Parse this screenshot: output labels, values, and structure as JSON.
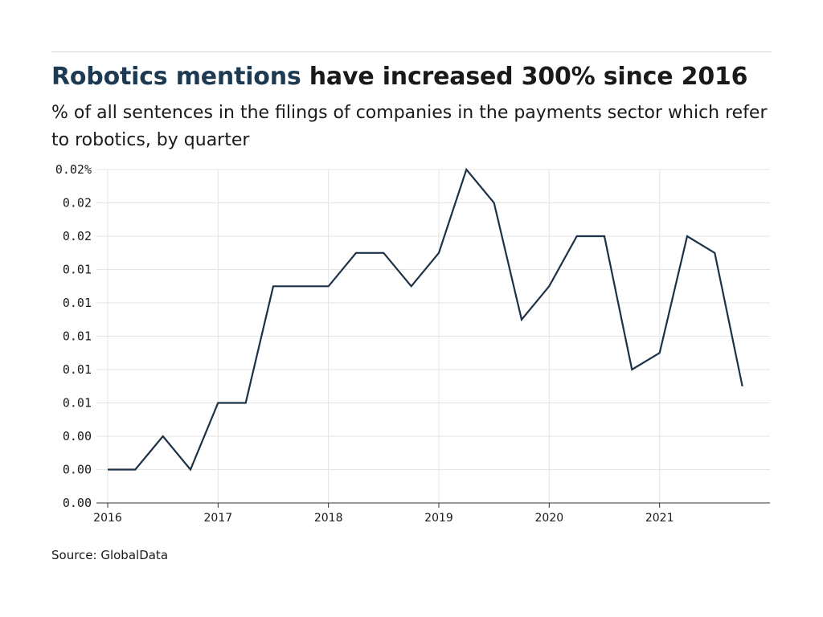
{
  "header": {
    "title_highlight": "Robotics mentions",
    "title_rest": " have increased 300% since 2016",
    "subtitle": "% of all sentences in the filings of companies in the payments sector which refer to robotics, by quarter"
  },
  "source": "Source: GlobalData",
  "colors": {
    "line": "#1d3147",
    "grid": "#e4e4e4",
    "axis": "#333333",
    "highlight": "#1d3a52"
  },
  "chart_data": {
    "type": "line",
    "title": "Robotics mentions have increased 300% since 2016",
    "subtitle": "% of all sentences in the filings of companies in the payments sector which refer to robotics, by quarter",
    "xlabel": "",
    "ylabel": "",
    "ylim": [
      0,
      0.02
    ],
    "xlim": [
      "2016 Q1",
      "2021 Q4"
    ],
    "y_tick_labels": [
      "0.00",
      "0.00",
      "0.00",
      "0.01",
      "0.01",
      "0.01",
      "0.01",
      "0.01",
      "0.02",
      "0.02",
      "0.02%"
    ],
    "x_tick_labels": [
      "2016",
      "2017",
      "2018",
      "2019",
      "2020",
      "2021"
    ],
    "grid": true,
    "series": [
      {
        "x": [
          "2016 Q1",
          "2016 Q2",
          "2016 Q3",
          "2016 Q4",
          "2017 Q1",
          "2017 Q2",
          "2017 Q3",
          "2017 Q4",
          "2018 Q1",
          "2018 Q2",
          "2018 Q3",
          "2018 Q4",
          "2019 Q1",
          "2019 Q2",
          "2019 Q3",
          "2019 Q4",
          "2020 Q1",
          "2020 Q2",
          "2020 Q3",
          "2020 Q4",
          "2021 Q1",
          "2021 Q2",
          "2021 Q3",
          "2021 Q4"
        ],
        "values": [
          0.002,
          0.002,
          0.004,
          0.002,
          0.006,
          0.006,
          0.013,
          0.013,
          0.013,
          0.015,
          0.015,
          0.013,
          0.015,
          0.02,
          0.018,
          0.011,
          0.013,
          0.016,
          0.016,
          0.008,
          0.009,
          0.016,
          0.015,
          0.007
        ]
      }
    ]
  }
}
